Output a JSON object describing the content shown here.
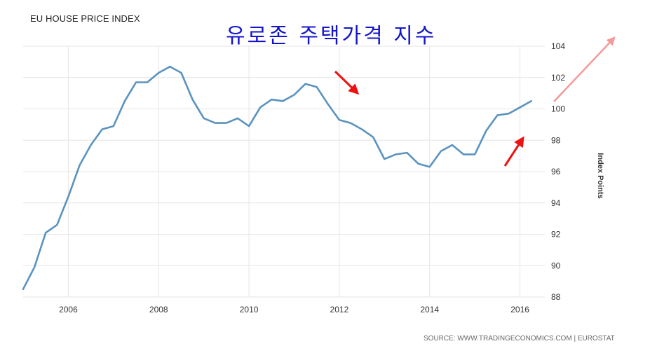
{
  "chart_data": {
    "type": "line",
    "title": "EU HOUSE PRICE INDEX",
    "overlay_title": "유로존 주택가격 지수",
    "xlabel": "",
    "ylabel": "Index Points",
    "source": "SOURCE: WWW.TRADINGECONOMICS.COM | EUROSTAT",
    "xlim": [
      2005.0,
      2016.55
    ],
    "ylim": [
      88,
      104
    ],
    "x_ticks": [
      2006,
      2008,
      2010,
      2012,
      2014,
      2016
    ],
    "y_ticks": [
      88,
      90,
      92,
      94,
      96,
      98,
      100,
      102,
      104
    ],
    "grid": true,
    "colors": {
      "line": "#5b93bf",
      "arrow": "#ee1111",
      "trend": "#f49a9a",
      "grid": "#e6e6e6"
    },
    "series": [
      {
        "name": "",
        "x": [
          2005.0,
          2005.25,
          2005.5,
          2005.75,
          2006.0,
          2006.25,
          2006.5,
          2006.75,
          2007.0,
          2007.25,
          2007.5,
          2007.75,
          2008.0,
          2008.25,
          2008.5,
          2008.75,
          2009.0,
          2009.25,
          2009.5,
          2009.75,
          2010.0,
          2010.25,
          2010.5,
          2010.75,
          2011.0,
          2011.25,
          2011.5,
          2011.75,
          2012.0,
          2012.25,
          2012.5,
          2012.75,
          2013.0,
          2013.25,
          2013.5,
          2013.75,
          2014.0,
          2014.25,
          2014.5,
          2014.75,
          2015.0,
          2015.25,
          2015.5,
          2015.75,
          2016.0,
          2016.25
        ],
        "values": [
          88.5,
          89.9,
          92.1,
          92.6,
          94.4,
          96.4,
          97.7,
          98.7,
          98.9,
          100.5,
          101.7,
          101.7,
          102.3,
          102.7,
          102.3,
          100.6,
          99.4,
          99.1,
          99.1,
          99.4,
          98.9,
          100.1,
          100.6,
          100.5,
          100.9,
          101.6,
          101.4,
          100.3,
          99.3,
          99.1,
          98.7,
          98.2,
          96.8,
          97.1,
          97.2,
          96.5,
          96.3,
          97.3,
          97.7,
          97.1,
          97.1,
          98.6,
          99.6,
          99.7,
          100.1,
          100.5
        ]
      }
    ]
  }
}
